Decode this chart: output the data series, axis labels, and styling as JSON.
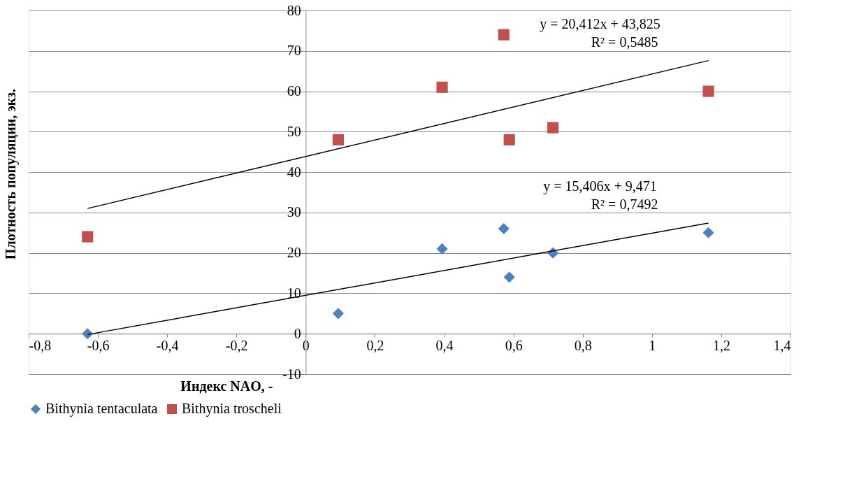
{
  "chart_data": {
    "type": "scatter",
    "xlabel": "Индекс NAO, -",
    "ylabel": "Плотность популяции, экз.",
    "xlim": [
      -0.8,
      1.4
    ],
    "xticks": [
      {
        "value": -0.8,
        "label": "-0,8"
      },
      {
        "value": -0.6,
        "label": "-0,6"
      },
      {
        "value": -0.4,
        "label": "-0,4"
      },
      {
        "value": -0.2,
        "label": "-0,2"
      },
      0,
      {
        "value": 0.2,
        "label": "0,2"
      },
      {
        "value": 0.4,
        "label": "0,4"
      },
      {
        "value": 0.6,
        "label": "0,6"
      },
      {
        "value": 0.8,
        "label": "0,8"
      },
      1,
      {
        "value": 1.2,
        "label": "1,2"
      },
      {
        "value": 1.4,
        "label": "1,4"
      }
    ],
    "ylim": [
      -10,
      80
    ],
    "yticks": [
      -10,
      0,
      10,
      20,
      30,
      40,
      50,
      60,
      70,
      80
    ],
    "grid": "y",
    "legend": "bottom",
    "series": [
      {
        "name": "Bithynia tentaculata",
        "color": "#4f81bd",
        "marker": "diamond",
        "x": [
          -0.63,
          0.094,
          0.394,
          0.572,
          0.588,
          0.714,
          1.163
        ],
        "values": [
          0,
          5,
          21,
          26,
          14,
          20,
          25
        ]
      },
      {
        "name": "Bithynia troscheli",
        "color": "#c0504d",
        "marker": "square",
        "x": [
          -0.63,
          0.094,
          0.394,
          0.572,
          0.588,
          0.714,
          1.163
        ],
        "values": [
          24,
          48,
          61,
          74,
          48,
          51,
          60
        ]
      },
      {
        "type": "line",
        "color": "#000000",
        "line_style": "solid",
        "x": [
          -0.63,
          1.163
        ],
        "values": [
          31,
          67.6
        ]
      },
      {
        "type": "line",
        "color": "#000000",
        "line_style": "solid",
        "x": [
          -0.63,
          1.163
        ],
        "values": [
          -0.2,
          27.4
        ]
      }
    ],
    "annotations": [
      "y = 20,412x + 43,825",
      "R² = 0,5485",
      "y = 15,406x + 9,471",
      "R² = 0,7492"
    ]
  }
}
